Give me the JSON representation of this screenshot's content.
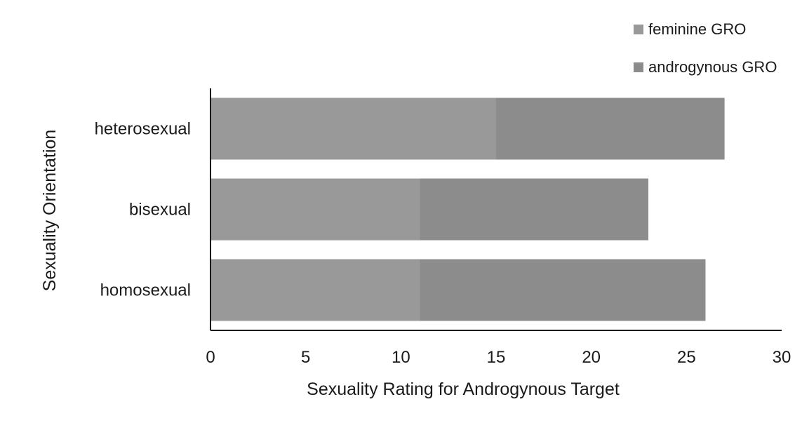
{
  "chart_data": {
    "type": "bar",
    "orientation": "horizontal",
    "stacked": true,
    "categories": [
      "heterosexual",
      "bisexual",
      "homosexual"
    ],
    "series": [
      {
        "name": "feminine GRO",
        "values": [
          15,
          11,
          11
        ],
        "color": "#999999"
      },
      {
        "name": "androgynous GRO",
        "values": [
          12,
          12,
          15
        ],
        "color": "#8c8c8c"
      }
    ],
    "xlabel": "Sexuality Rating for Androgynous Target",
    "ylabel": "Sexuality Orientation",
    "xlim": [
      0,
      30
    ],
    "xticks": [
      "0",
      "5",
      "10",
      "15",
      "20",
      "25",
      "30"
    ],
    "grid": false,
    "legend_position": "top-right"
  }
}
